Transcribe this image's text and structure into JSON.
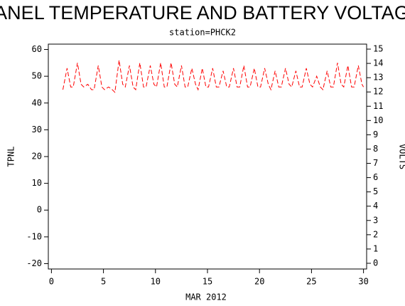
{
  "chart_data": {
    "type": "line",
    "title": "PANEL TEMPERATURE AND BATTERY VOLTAGE",
    "subtitle": "station=PHCK2",
    "x_label": "MAR 2012",
    "y_label": "TPNL",
    "y2_label": "VOLTS",
    "color": "#ff0000",
    "x": [
      1.1,
      1.5,
      1.85,
      2.1,
      2.5,
      2.85,
      3.1,
      3.5,
      3.85,
      4.1,
      4.5,
      4.85,
      5.1,
      5.5,
      5.85,
      6.1,
      6.5,
      6.85,
      7.1,
      7.5,
      7.85,
      8.1,
      8.5,
      8.85,
      9.1,
      9.5,
      9.85,
      10.1,
      10.5,
      10.85,
      11.1,
      11.5,
      11.85,
      12.1,
      12.5,
      12.85,
      13.1,
      13.5,
      13.85,
      14.1,
      14.5,
      14.85,
      15.1,
      15.5,
      15.85,
      16.1,
      16.5,
      16.85,
      17.1,
      17.5,
      17.85,
      18.1,
      18.5,
      18.85,
      19.1,
      19.5,
      19.85,
      20.1,
      20.5,
      20.85,
      21.1,
      21.5,
      21.85,
      22.1,
      22.5,
      22.85,
      23.1,
      23.5,
      23.85,
      24.1,
      24.5,
      24.85,
      25.1,
      25.5,
      25.85,
      26.1,
      26.5,
      26.85,
      27.1,
      27.5,
      27.85,
      28.1,
      28.5,
      28.85,
      29.1,
      29.5,
      29.85,
      30.0
    ],
    "values": [
      45,
      53,
      46,
      46,
      55,
      47,
      46,
      47,
      45,
      45,
      54,
      46,
      45,
      46,
      45,
      44,
      56,
      47,
      46,
      54,
      46,
      45,
      55,
      46,
      46,
      54,
      47,
      46,
      55,
      46,
      46,
      55,
      47,
      46,
      54,
      46,
      46,
      53,
      47,
      45,
      53,
      46,
      46,
      53,
      46,
      46,
      52,
      46,
      46,
      53,
      46,
      46,
      54,
      46,
      46,
      53,
      46,
      46,
      53,
      47,
      45,
      52,
      46,
      46,
      53,
      47,
      46,
      52,
      46,
      46,
      53,
      47,
      46,
      50,
      46,
      45,
      52,
      46,
      46,
      55,
      47,
      46,
      54,
      46,
      46,
      54,
      47,
      46
    ],
    "xlim": [
      -0.3,
      30.3
    ],
    "xticks": [
      0,
      5,
      10,
      15,
      20,
      25,
      30
    ],
    "ylim": [
      -22,
      62
    ],
    "yticks": [
      -20,
      -10,
      0,
      10,
      20,
      30,
      40,
      50,
      60
    ],
    "y2lim": [
      -0.4,
      15.35
    ],
    "y2ticks": [
      0,
      1,
      2,
      3,
      4,
      5,
      6,
      7,
      8,
      9,
      10,
      11,
      12,
      13,
      14,
      15
    ]
  }
}
